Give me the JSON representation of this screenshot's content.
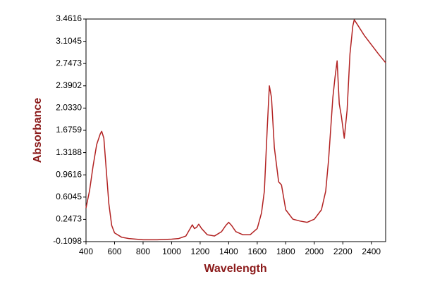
{
  "chart_data": {
    "type": "line",
    "xlabel": "Wavelength",
    "ylabel": "Absorbance",
    "x": [
      400,
      425,
      450,
      475,
      500,
      510,
      525,
      540,
      560,
      580,
      600,
      650,
      700,
      800,
      900,
      1000,
      1050,
      1100,
      1130,
      1145,
      1160,
      1175,
      1190,
      1210,
      1250,
      1300,
      1350,
      1380,
      1400,
      1420,
      1450,
      1500,
      1550,
      1600,
      1630,
      1650,
      1670,
      1685,
      1700,
      1720,
      1750,
      1770,
      1800,
      1850,
      1900,
      1950,
      2000,
      2050,
      2080,
      2100,
      2130,
      2145,
      2160,
      2175,
      2190,
      2210,
      2230,
      2250,
      2270,
      2280,
      2300,
      2350,
      2400,
      2450,
      2500
    ],
    "values": [
      0.43,
      0.71,
      1.11,
      1.45,
      1.62,
      1.66,
      1.55,
      1.1,
      0.5,
      0.15,
      0.03,
      -0.04,
      -0.06,
      -0.08,
      -0.08,
      -0.07,
      -0.06,
      -0.02,
      0.1,
      0.16,
      0.1,
      0.12,
      0.17,
      0.1,
      0.0,
      -0.02,
      0.05,
      0.15,
      0.2,
      0.15,
      0.05,
      0.0,
      0.0,
      0.1,
      0.35,
      0.7,
      1.7,
      2.39,
      2.2,
      1.4,
      0.85,
      0.8,
      0.4,
      0.25,
      0.22,
      0.2,
      0.25,
      0.4,
      0.7,
      1.2,
      2.2,
      2.52,
      2.79,
      2.1,
      1.9,
      1.55,
      2.0,
      2.9,
      3.35,
      3.45,
      3.38,
      3.2,
      3.05,
      2.9,
      2.76
    ],
    "color": "#b22222",
    "xlim": [
      400,
      2500
    ],
    "xticks": [
      400,
      600,
      800,
      1000,
      1200,
      1400,
      1600,
      1800,
      2000,
      2200,
      2400
    ],
    "ylim": [
      -0.1098,
      3.4616
    ],
    "yticks": [
      -0.1098,
      0.2473,
      0.6045,
      0.9616,
      1.3188,
      1.6759,
      {
        "value": 2.033,
        "label": "2.0330"
      },
      2.3902,
      2.7473,
      3.1045,
      3.4616
    ],
    "grid": false
  }
}
